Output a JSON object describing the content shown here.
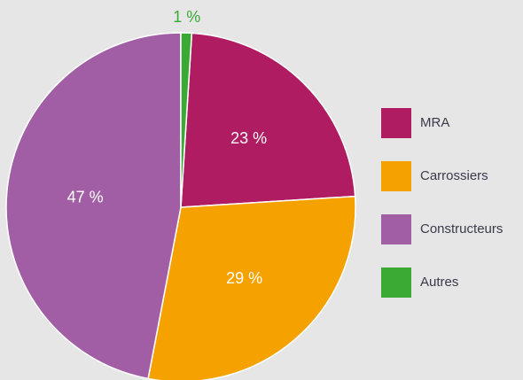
{
  "chart_data": {
    "type": "pie",
    "categories": [
      "MRA",
      "Carrossiers",
      "Constructeurs",
      "Autres"
    ],
    "values": [
      23,
      29,
      47,
      1
    ],
    "value_labels": [
      "23 %",
      "29 %",
      "47 %",
      "1 %"
    ],
    "colors": [
      "#b01c62",
      "#f5a200",
      "#a25ea5",
      "#3aaa35"
    ],
    "legend": "right"
  }
}
